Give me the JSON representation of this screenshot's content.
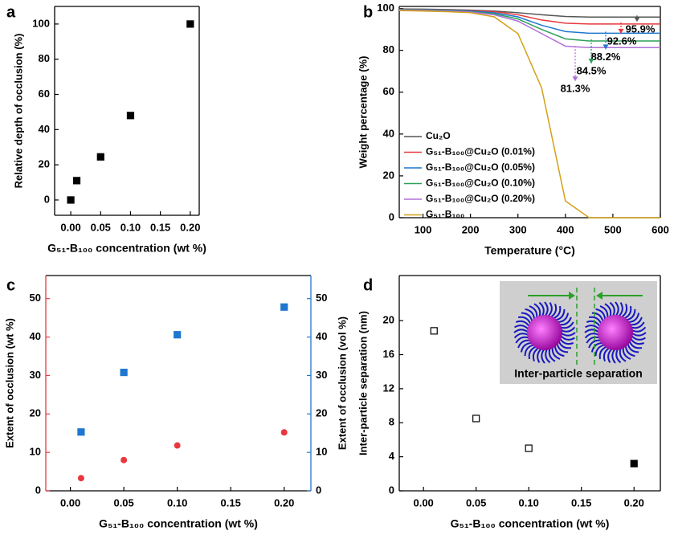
{
  "chart_data": [
    {
      "type": "scatter",
      "panel": "a",
      "x_label": "G₅₁-B₁₀₀ concentration (wt %)",
      "y_label": "Relative depth of occlusion (%)",
      "x": [
        0,
        0.01,
        0.05,
        0.1,
        0.2
      ],
      "values": [
        0,
        11,
        24.5,
        48,
        100
      ],
      "color": "#000000",
      "marker": "square",
      "xlim": [
        -0.027,
        0.215
      ],
      "ylim": [
        -8.7,
        110
      ],
      "xticks": [
        {
          "value": 0,
          "label": "0.00"
        },
        {
          "value": 0.05,
          "label": "0.05"
        },
        {
          "value": 0.1,
          "label": "0.10"
        },
        {
          "value": 0.15,
          "label": "0.15"
        },
        {
          "value": 0.2,
          "label": "0.20"
        }
      ],
      "yticks": [
        0,
        20,
        40,
        60,
        80,
        100
      ]
    },
    {
      "type": "line",
      "panel": "b",
      "x_label": "Temperature (°C)",
      "y_label": "Weight percentage (%)",
      "x": [
        50,
        100,
        150,
        200,
        250,
        300,
        350,
        400,
        450,
        500,
        550,
        600
      ],
      "series": [
        {
          "name": "Cu₂O",
          "color": "#555555",
          "values": [
            99.8,
            99.7,
            99.5,
            99.2,
            98.8,
            98,
            97,
            96.2,
            95.9,
            95.9,
            95.9,
            95.9
          ]
        },
        {
          "name": "G₅₁-B₁₀₀@Cu₂O (0.01%)",
          "color": "#e8383d",
          "values": [
            99.6,
            99.5,
            99.3,
            99,
            98.5,
            97,
            94.5,
            93,
            92.6,
            92.6,
            92.6,
            92.6
          ]
        },
        {
          "name": "G₅₁-B₁₀₀@Cu₂O (0.05%)",
          "color": "#1f77d0",
          "values": [
            99.5,
            99.4,
            99.2,
            98.8,
            98,
            96,
            92,
            89,
            88.2,
            88.2,
            88.2,
            88.2
          ]
        },
        {
          "name": "G₅₁-B₁₀₀@Cu₂O (0.10%)",
          "color": "#2ca05a",
          "values": [
            99.5,
            99.3,
            99,
            98.5,
            97.5,
            95,
            90,
            85.5,
            84.5,
            84.5,
            84.5,
            84.5
          ]
        },
        {
          "name": "G₅₁-B₁₀₀@Cu₂O (0.20%)",
          "color": "#b070d8",
          "values": [
            99.3,
            99.1,
            98.8,
            98.3,
            97,
            94,
            88,
            82,
            81.3,
            81.3,
            81.3,
            81.3
          ]
        },
        {
          "name": "G₅₁-B₁₀₀",
          "color": "#d4a017",
          "values": [
            99,
            98.8,
            98.5,
            98,
            96,
            88,
            62,
            8,
            0,
            0,
            0,
            0
          ]
        }
      ],
      "annotations": [
        "95.9%",
        "92.6%",
        "88.2%",
        "84.5%",
        "81.3%"
      ],
      "xlim": [
        50,
        600
      ],
      "ylim": [
        0,
        101
      ],
      "xticks": [
        100,
        200,
        300,
        400,
        500,
        600
      ],
      "yticks": [
        0,
        20,
        40,
        60,
        80,
        100
      ]
    },
    {
      "type": "scatter",
      "panel": "c",
      "x_label": "G₅₁-B₁₀₀ concentration (wt %)",
      "y_label": "Extent of occlusion (wt %)",
      "y2_label": "Extent of occlusion (vol %)",
      "x": [
        0.01,
        0.05,
        0.1,
        0.2
      ],
      "series": [
        {
          "color": "#e8383d",
          "marker": "circle",
          "values": [
            3.3,
            8,
            11.8,
            15.2
          ]
        },
        {
          "color": "#1f77d0",
          "marker": "square",
          "axis": "y2",
          "values": [
            15.3,
            30.8,
            40.6,
            47.8
          ]
        }
      ],
      "xlim": [
        -0.023,
        0.225
      ],
      "ylim": [
        0,
        56
      ],
      "y2lim": [
        0,
        56
      ],
      "xticks": [
        {
          "value": 0,
          "label": "0.00"
        },
        {
          "value": 0.05,
          "label": "0.05"
        },
        {
          "value": 0.1,
          "label": "0.10"
        },
        {
          "value": 0.15,
          "label": "0.15"
        },
        {
          "value": 0.2,
          "label": "0.20"
        }
      ],
      "yticks": [
        0,
        10,
        20,
        30,
        40,
        50
      ],
      "y2ticks": [
        0,
        10,
        20,
        30,
        40,
        50
      ]
    },
    {
      "type": "scatter",
      "panel": "d",
      "x_label": "G₅₁-B₁₀₀ concentration (wt %)",
      "y_label": "Inter-particle separation (nm)",
      "x": [
        0.01,
        0.05,
        0.1,
        0.2
      ],
      "values": [
        18.8,
        8.5,
        5,
        3.2
      ],
      "color": "#000000",
      "marker": "square",
      "marker_filled": [
        false,
        false,
        false,
        true
      ],
      "inset_label": "Inter-particle separation",
      "xlim": [
        -0.023,
        0.225
      ],
      "ylim": [
        0,
        25.3
      ],
      "xticks": [
        {
          "value": 0,
          "label": "0.00"
        },
        {
          "value": 0.05,
          "label": "0.05"
        },
        {
          "value": 0.1,
          "label": "0.10"
        },
        {
          "value": 0.15,
          "label": "0.15"
        },
        {
          "value": 0.2,
          "label": "0.20"
        }
      ],
      "yticks": [
        0,
        4,
        8,
        12,
        16,
        20
      ]
    }
  ]
}
